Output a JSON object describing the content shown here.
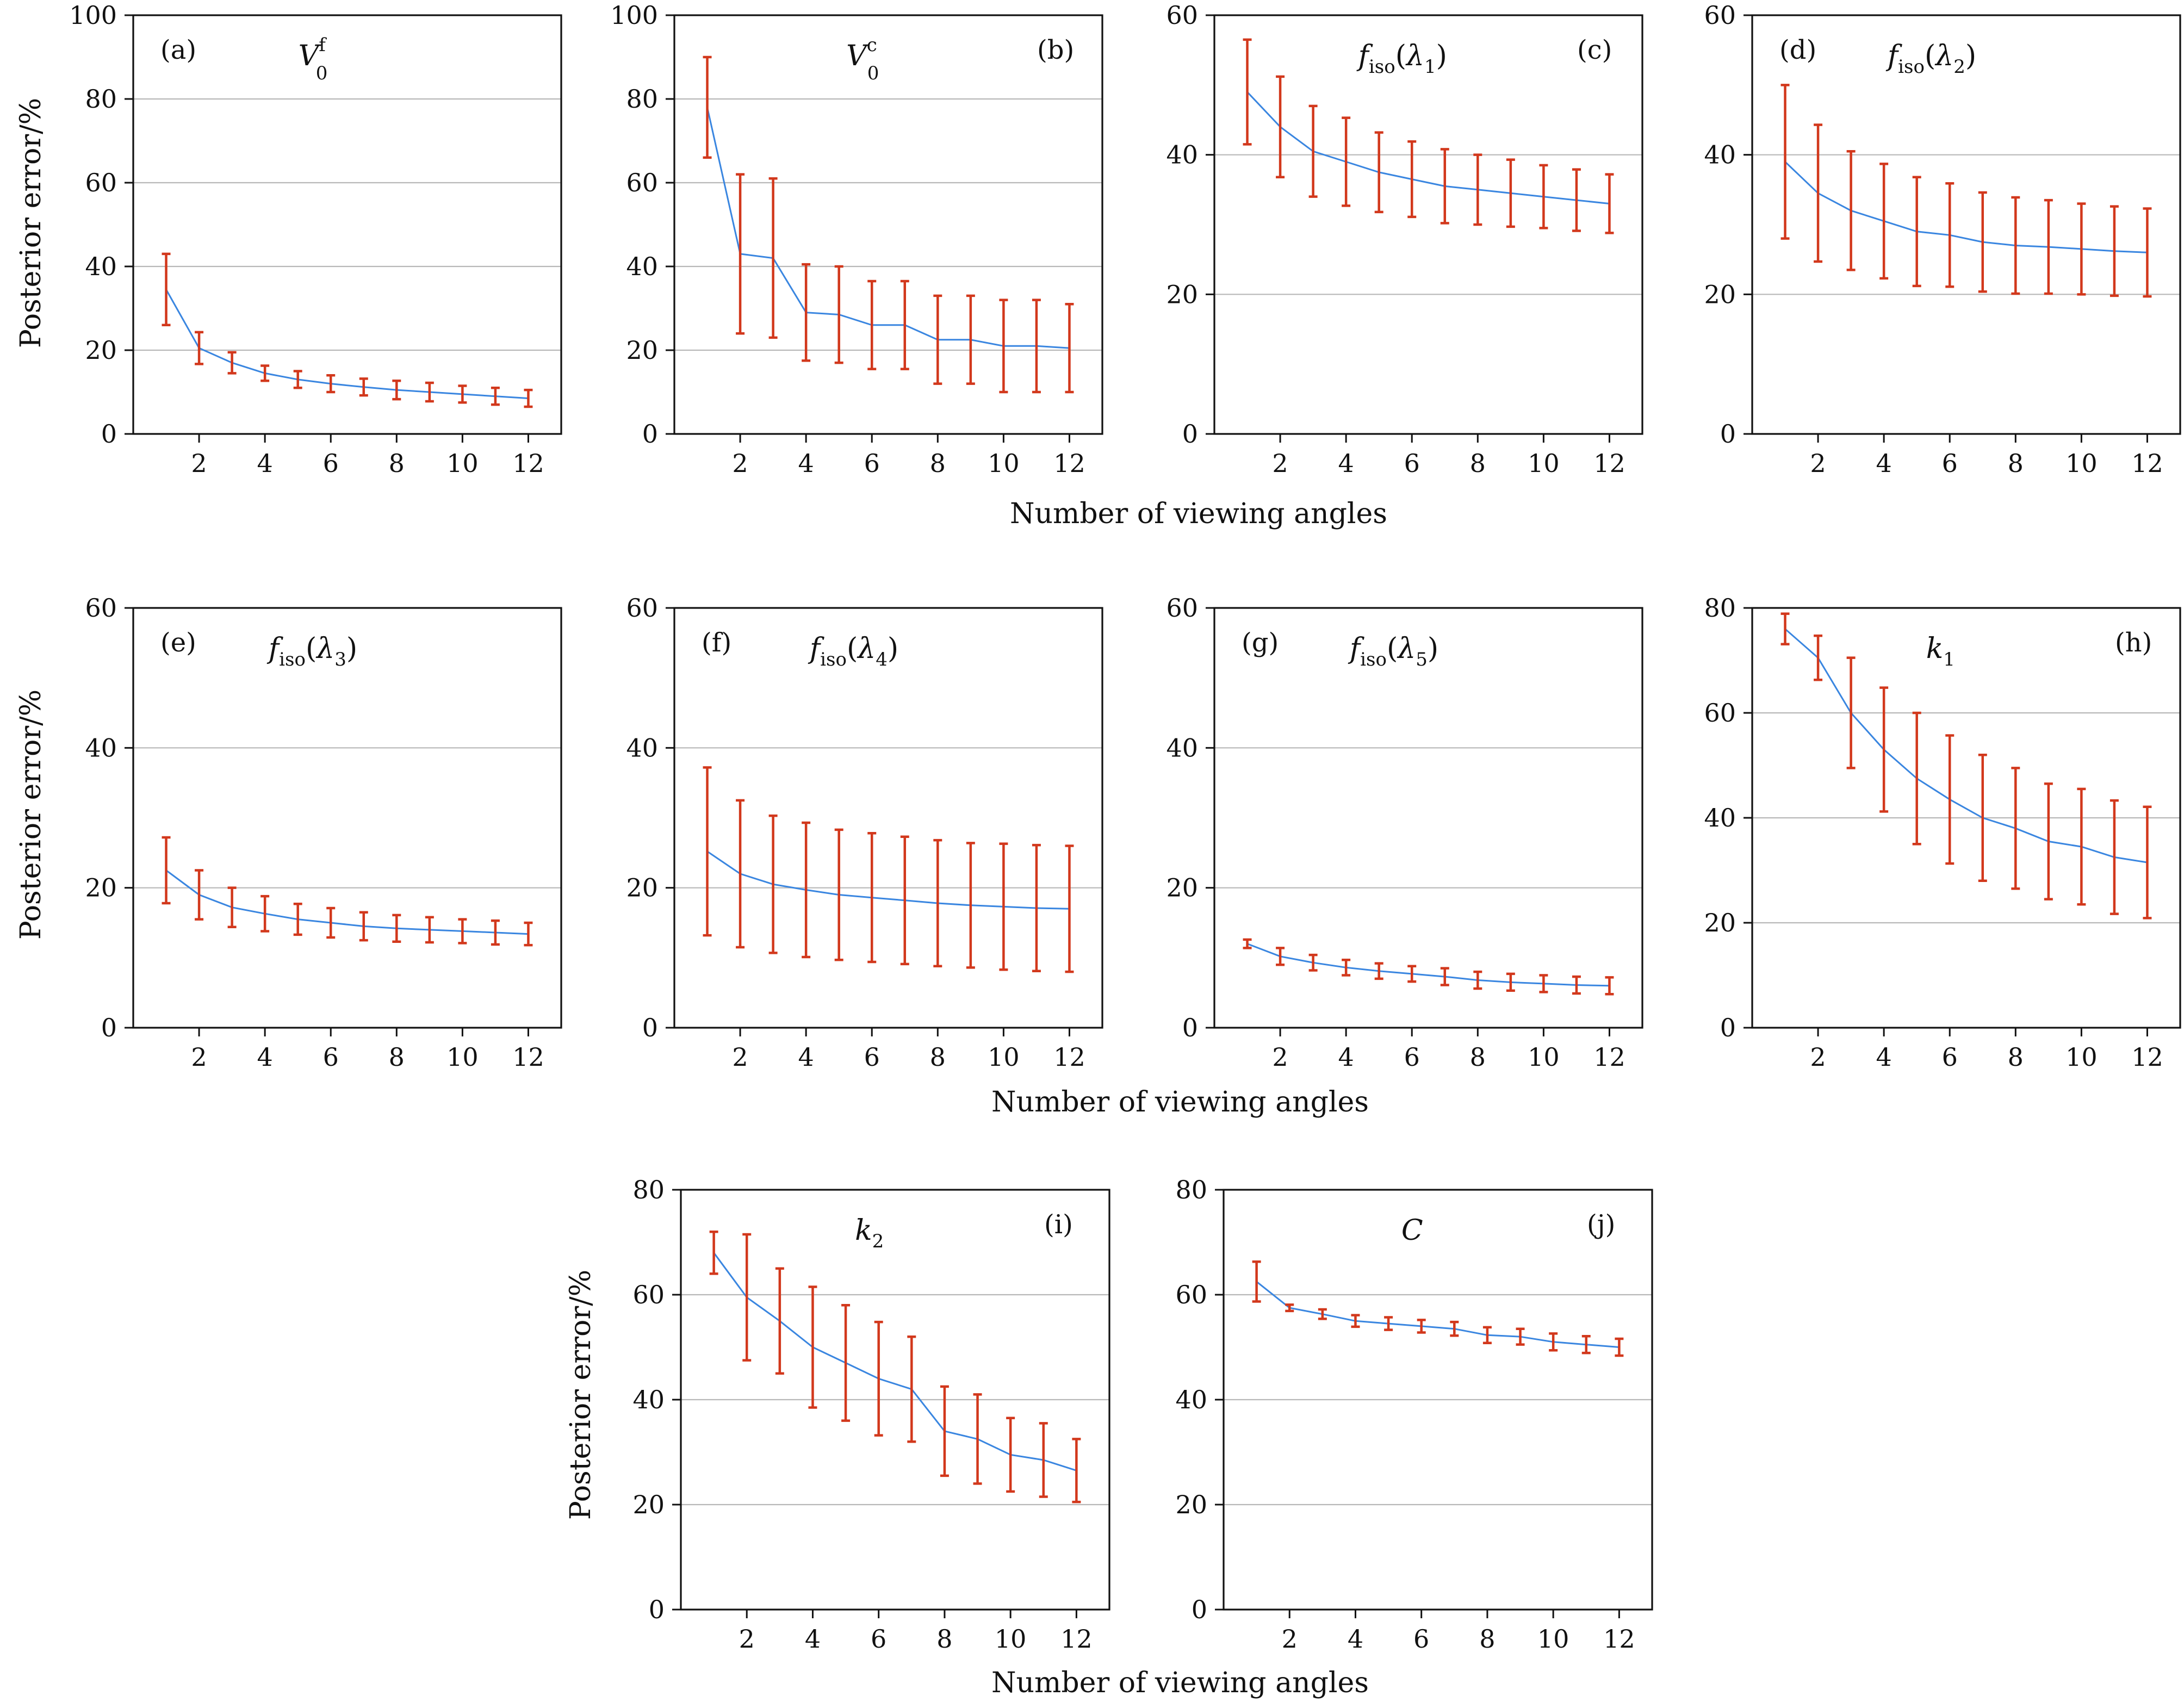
{
  "figure": {
    "xlabel_text": "Number of viewing angles",
    "ylabel_text": "Posterior error/%"
  },
  "colors": {
    "line": "#3a86e0",
    "errorbar": "#d2381c",
    "grid": "#b8b8b8",
    "axis": "#111111"
  },
  "chart_data": [
    {
      "type": "line",
      "id": "a",
      "label": "(a)",
      "title": "V0f",
      "title_main": "V",
      "title_sub": "0",
      "title_sup": "f",
      "label_side": "left",
      "xlabel": "",
      "ylabel": "Posterior error/%",
      "xlim": [
        0,
        13
      ],
      "ylim": [
        0,
        100
      ],
      "xticks": [
        2,
        4,
        6,
        8,
        10,
        12
      ],
      "yticks": [
        0,
        20,
        40,
        60,
        80,
        100
      ],
      "grid": true,
      "x": [
        1,
        2,
        3,
        4,
        5,
        6,
        7,
        8,
        9,
        10,
        11,
        12
      ],
      "y": [
        34.5,
        20.5,
        17,
        14.5,
        13,
        12,
        11.2,
        10.5,
        10,
        9.5,
        9,
        8.5
      ],
      "err": [
        8.5,
        3.8,
        2.5,
        1.8,
        2,
        2,
        2,
        2.2,
        2.2,
        2,
        2,
        2
      ]
    },
    {
      "type": "line",
      "id": "b",
      "label": "(b)",
      "title": "V0c",
      "title_main": "V",
      "title_sub": "0",
      "title_sup": "c",
      "label_side": "right",
      "xlabel": "",
      "ylabel": "",
      "xlim": [
        0,
        13
      ],
      "ylim": [
        0,
        100
      ],
      "xticks": [
        2,
        4,
        6,
        8,
        10,
        12
      ],
      "yticks": [
        0,
        20,
        40,
        60,
        80,
        100
      ],
      "grid": true,
      "x": [
        1,
        2,
        3,
        4,
        5,
        6,
        7,
        8,
        9,
        10,
        11,
        12
      ],
      "y": [
        78,
        43,
        42,
        29,
        28.5,
        26,
        26,
        22.5,
        22.5,
        21,
        21,
        20.5
      ],
      "err": [
        12,
        19,
        19,
        11.5,
        11.5,
        10.5,
        10.5,
        10.5,
        10.5,
        11,
        11,
        10.5
      ]
    },
    {
      "type": "line",
      "id": "c",
      "label": "(c)",
      "title": "fiso(λ1)",
      "title_main": "f",
      "title_sub": "iso",
      "title_arg": "λ",
      "title_argsub": "1",
      "label_side": "right",
      "xlabel": "",
      "ylabel": "",
      "xlim": [
        0,
        13
      ],
      "ylim": [
        0,
        60
      ],
      "xticks": [
        2,
        4,
        6,
        8,
        10,
        12
      ],
      "yticks": [
        0,
        20,
        40,
        60
      ],
      "grid": true,
      "x": [
        1,
        2,
        3,
        4,
        5,
        6,
        7,
        8,
        9,
        10,
        11,
        12
      ],
      "y": [
        49,
        44,
        40.5,
        39,
        37.5,
        36.5,
        35.5,
        35,
        34.5,
        34,
        33.5,
        33
      ],
      "err": [
        7.5,
        7.2,
        6.5,
        6.3,
        5.7,
        5.4,
        5.3,
        5,
        4.8,
        4.5,
        4.4,
        4.2
      ]
    },
    {
      "type": "line",
      "id": "d",
      "label": "(d)",
      "title": "fiso(λ2)",
      "title_main": "f",
      "title_sub": "iso",
      "title_arg": "λ",
      "title_argsub": "2",
      "label_side": "left",
      "xlabel": "",
      "ylabel": "",
      "xlim": [
        0,
        13
      ],
      "ylim": [
        0,
        60
      ],
      "xticks": [
        2,
        4,
        6,
        8,
        10,
        12
      ],
      "yticks": [
        0,
        20,
        40,
        60
      ],
      "grid": true,
      "x": [
        1,
        2,
        3,
        4,
        5,
        6,
        7,
        8,
        9,
        10,
        11,
        12
      ],
      "y": [
        39,
        34.5,
        32,
        30.5,
        29,
        28.5,
        27.5,
        27,
        26.8,
        26.5,
        26.2,
        26
      ],
      "err": [
        11,
        9.8,
        8.5,
        8.2,
        7.8,
        7.4,
        7.1,
        6.9,
        6.7,
        6.5,
        6.4,
        6.3
      ]
    },
    {
      "type": "line",
      "id": "e",
      "label": "(e)",
      "title": "fiso(λ3)",
      "title_main": "f",
      "title_sub": "iso",
      "title_arg": "λ",
      "title_argsub": "3",
      "label_side": "left",
      "xlabel": "",
      "ylabel": "Posterior error/%",
      "xlim": [
        0,
        13
      ],
      "ylim": [
        0,
        60
      ],
      "xticks": [
        2,
        4,
        6,
        8,
        10,
        12
      ],
      "yticks": [
        0,
        20,
        40,
        60
      ],
      "grid": true,
      "x": [
        1,
        2,
        3,
        4,
        5,
        6,
        7,
        8,
        9,
        10,
        11,
        12
      ],
      "y": [
        22.5,
        19,
        17.2,
        16.3,
        15.5,
        15,
        14.5,
        14.2,
        14,
        13.8,
        13.6,
        13.4
      ],
      "err": [
        4.7,
        3.5,
        2.8,
        2.5,
        2.2,
        2.1,
        2,
        1.9,
        1.8,
        1.7,
        1.7,
        1.6
      ]
    },
    {
      "type": "line",
      "id": "f",
      "label": "(f)",
      "title": "fiso(λ4)",
      "title_main": "f",
      "title_sub": "iso",
      "title_arg": "λ",
      "title_argsub": "4",
      "label_side": "left",
      "xlabel": "",
      "ylabel": "",
      "xlim": [
        0,
        13
      ],
      "ylim": [
        0,
        60
      ],
      "xticks": [
        2,
        4,
        6,
        8,
        10,
        12
      ],
      "yticks": [
        0,
        20,
        40,
        60
      ],
      "grid": true,
      "x": [
        1,
        2,
        3,
        4,
        5,
        6,
        7,
        8,
        9,
        10,
        11,
        12
      ],
      "y": [
        25.2,
        22,
        20.5,
        19.7,
        19,
        18.6,
        18.2,
        17.8,
        17.5,
        17.3,
        17.1,
        17
      ],
      "err": [
        12,
        10.5,
        9.8,
        9.6,
        9.3,
        9.2,
        9.1,
        9,
        8.9,
        9,
        9,
        9
      ]
    },
    {
      "type": "line",
      "id": "g",
      "label": "(g)",
      "title": "fiso(λ5)",
      "title_main": "f",
      "title_sub": "iso",
      "title_arg": "λ",
      "title_argsub": "5",
      "label_side": "left",
      "xlabel": "",
      "ylabel": "",
      "xlim": [
        0,
        13
      ],
      "ylim": [
        0,
        60
      ],
      "xticks": [
        2,
        4,
        6,
        8,
        10,
        12
      ],
      "yticks": [
        0,
        20,
        40,
        60
      ],
      "grid": true,
      "x": [
        1,
        2,
        3,
        4,
        5,
        6,
        7,
        8,
        9,
        10,
        11,
        12
      ],
      "y": [
        12,
        10.2,
        9.3,
        8.6,
        8.1,
        7.7,
        7.3,
        6.8,
        6.5,
        6.3,
        6.1,
        6
      ],
      "err": [
        0.6,
        1.2,
        1.1,
        1.1,
        1.1,
        1.1,
        1.2,
        1.2,
        1.2,
        1.2,
        1.2,
        1.2
      ]
    },
    {
      "type": "line",
      "id": "h",
      "label": "(h)",
      "title": "k1",
      "title_main": "k",
      "title_sub": "1",
      "label_side": "right",
      "xlabel": "",
      "ylabel": "",
      "xlim": [
        0,
        13
      ],
      "ylim": [
        0,
        80
      ],
      "xticks": [
        2,
        4,
        6,
        8,
        10,
        12
      ],
      "yticks": [
        0,
        20,
        40,
        60,
        80
      ],
      "grid": true,
      "x": [
        1,
        2,
        3,
        4,
        5,
        6,
        7,
        8,
        9,
        10,
        11,
        12
      ],
      "y": [
        76,
        70.5,
        60,
        53,
        47.5,
        43.5,
        40,
        38,
        35.5,
        34.5,
        32.5,
        31.5
      ],
      "err": [
        2.9,
        4.2,
        10.5,
        11.8,
        12.5,
        12.2,
        12,
        11.5,
        11,
        11,
        10.8,
        10.6
      ]
    },
    {
      "type": "line",
      "id": "i",
      "label": "(i)",
      "title": "k2",
      "title_main": "k",
      "title_sub": "2",
      "label_side": "right",
      "xlabel": "",
      "ylabel": "Posterior error/%",
      "xlim": [
        0,
        13
      ],
      "ylim": [
        0,
        80
      ],
      "xticks": [
        2,
        4,
        6,
        8,
        10,
        12
      ],
      "yticks": [
        0,
        20,
        40,
        60,
        80
      ],
      "grid": true,
      "x": [
        1,
        2,
        3,
        4,
        5,
        6,
        7,
        8,
        9,
        10,
        11,
        12
      ],
      "y": [
        68,
        59.5,
        55,
        50,
        47,
        44,
        42,
        34,
        32.5,
        29.5,
        28.5,
        26.5
      ],
      "err": [
        4,
        12,
        10,
        11.5,
        11,
        10.8,
        10,
        8.5,
        8.5,
        7,
        7,
        6
      ]
    },
    {
      "type": "line",
      "id": "j",
      "label": "(j)",
      "title": "C",
      "title_main": "C",
      "label_side": "right",
      "xlabel": "",
      "ylabel": "",
      "xlim": [
        0,
        13
      ],
      "ylim": [
        0,
        80
      ],
      "xticks": [
        2,
        4,
        6,
        8,
        10,
        12
      ],
      "yticks": [
        0,
        20,
        40,
        60,
        80
      ],
      "grid": true,
      "x": [
        1,
        2,
        3,
        4,
        5,
        6,
        7,
        8,
        9,
        10,
        11,
        12
      ],
      "y": [
        62.5,
        57.5,
        56.3,
        55,
        54.5,
        54,
        53.5,
        52.3,
        52,
        51,
        50.5,
        50
      ],
      "err": [
        3.8,
        0.6,
        0.9,
        1.1,
        1.2,
        1.2,
        1.3,
        1.5,
        1.5,
        1.6,
        1.6,
        1.6
      ]
    }
  ]
}
